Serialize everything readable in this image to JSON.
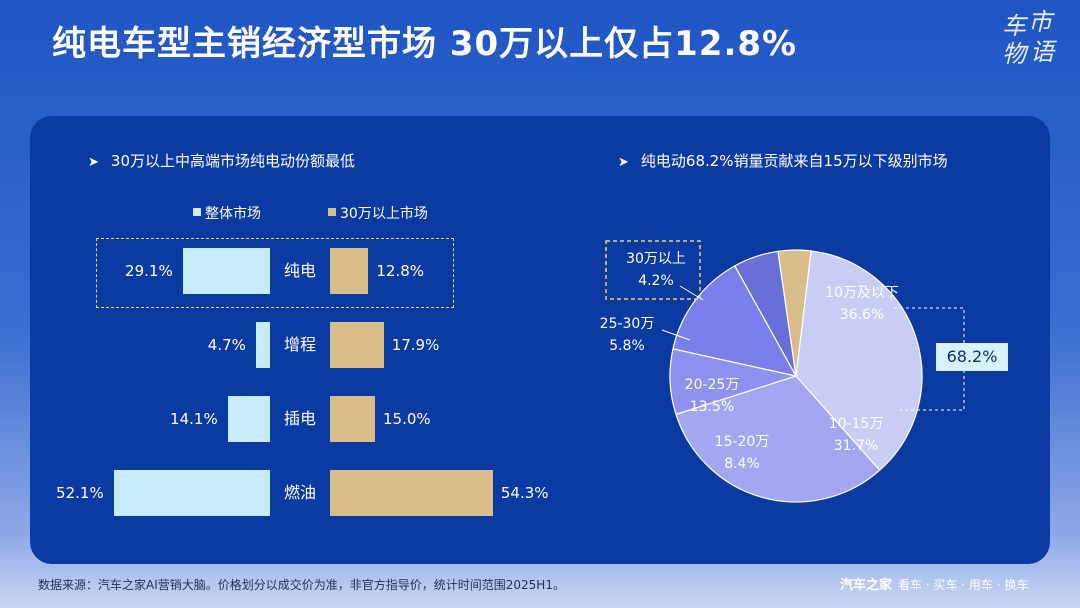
{
  "title": "纯电车型主销经济型市场 30万以上仅占12.8%",
  "logo": {
    "chars": [
      "车",
      "市",
      "物",
      "语"
    ]
  },
  "colors": {
    "left_bar": "#c7ecfb",
    "right_bar": "#d8bd8a",
    "highlight": "#e9d85e"
  },
  "left_panel": {
    "subtitle": "30万以上中高端市场纯电动份额最低",
    "legend": {
      "series_a": "整体市场",
      "series_b": "30万以上市场"
    }
  },
  "right_panel": {
    "subtitle": "纯电动68.2%销量贡献来自15万以下级别市场",
    "total_label": "68.2%"
  },
  "chart_data": [
    {
      "type": "bar",
      "orientation": "horizontal-diverging",
      "categories": [
        "纯电",
        "增程",
        "插电",
        "燃油"
      ],
      "series": [
        {
          "name": "整体市场",
          "values": [
            29.1,
            4.7,
            14.1,
            52.1
          ],
          "labels": [
            "29.1%",
            "4.7%",
            "14.1%",
            "52.1%"
          ]
        },
        {
          "name": "30万以上市场",
          "values": [
            12.8,
            17.9,
            15.0,
            54.3
          ],
          "labels": [
            "12.8%",
            "17.9%",
            "15.0%",
            "54.3%"
          ]
        }
      ],
      "highlighted_category": "纯电"
    },
    {
      "type": "pie",
      "slices": [
        {
          "label": "10万及以下",
          "value": 36.6,
          "value_label": "36.6%",
          "color": "#c9ccf5"
        },
        {
          "label": "10-15万",
          "value": 31.7,
          "value_label": "31.7%",
          "color": "#a3a7f2"
        },
        {
          "label": "15-20万",
          "value": 8.4,
          "value_label": "8.4%",
          "color": "#8d92ef"
        },
        {
          "label": "20-25万",
          "value": 13.5,
          "value_label": "13.5%",
          "color": "#7b7feb"
        },
        {
          "label": "25-30万",
          "value": 5.8,
          "value_label": "5.8%",
          "color": "#6a6fd8"
        },
        {
          "label": "30万以上",
          "value": 4.2,
          "value_label": "4.2%",
          "color": "#d8bd8a"
        }
      ]
    }
  ],
  "footer": {
    "source": "数据来源：汽车之家AI营销大脑。价格划分以成交价为准，非官方指导价，统计时间范围2025H1。",
    "brand": "汽车之家",
    "brand_tags": "看车 · 买车 · 用车 · 换车"
  }
}
